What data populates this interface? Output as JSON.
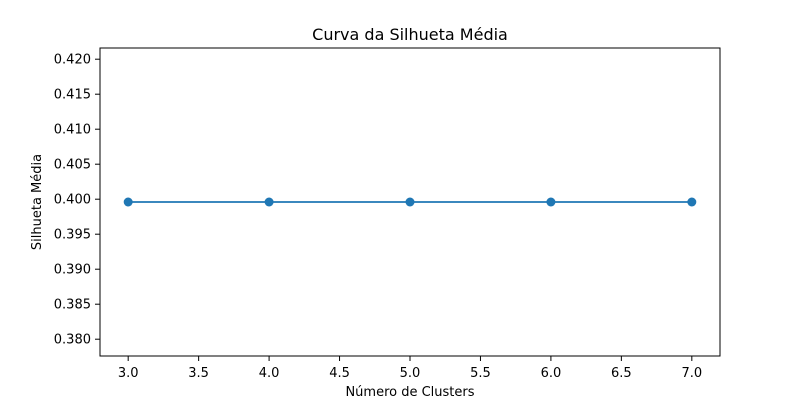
{
  "chart_data": {
    "type": "line",
    "title": "Curva da Silhueta Média",
    "xlabel": "Número de Clusters",
    "ylabel": "Silhueta Média",
    "x": [
      3,
      4,
      5,
      6,
      7
    ],
    "series": [
      {
        "values": [
          0.3996,
          0.3996,
          0.3996,
          0.3996,
          0.3996
        ],
        "color": "#1f77b4",
        "marker": "circle"
      }
    ],
    "xlim": [
      2.8,
      7.2
    ],
    "ylim": [
      0.3776,
      0.4216
    ],
    "xticks": [
      3.0,
      3.5,
      4.0,
      4.5,
      5.0,
      5.5,
      6.0,
      6.5,
      7.0
    ],
    "xtick_labels": [
      "3.0",
      "3.5",
      "4.0",
      "4.5",
      "5.0",
      "5.5",
      "6.0",
      "6.5",
      "7.0"
    ],
    "yticks": [
      0.38,
      0.385,
      0.39,
      0.395,
      0.4,
      0.405,
      0.41,
      0.415,
      0.42
    ],
    "ytick_labels": [
      "0.380",
      "0.385",
      "0.390",
      "0.395",
      "0.400",
      "0.405",
      "0.410",
      "0.415",
      "0.420"
    ],
    "grid": false,
    "legend": "none"
  }
}
